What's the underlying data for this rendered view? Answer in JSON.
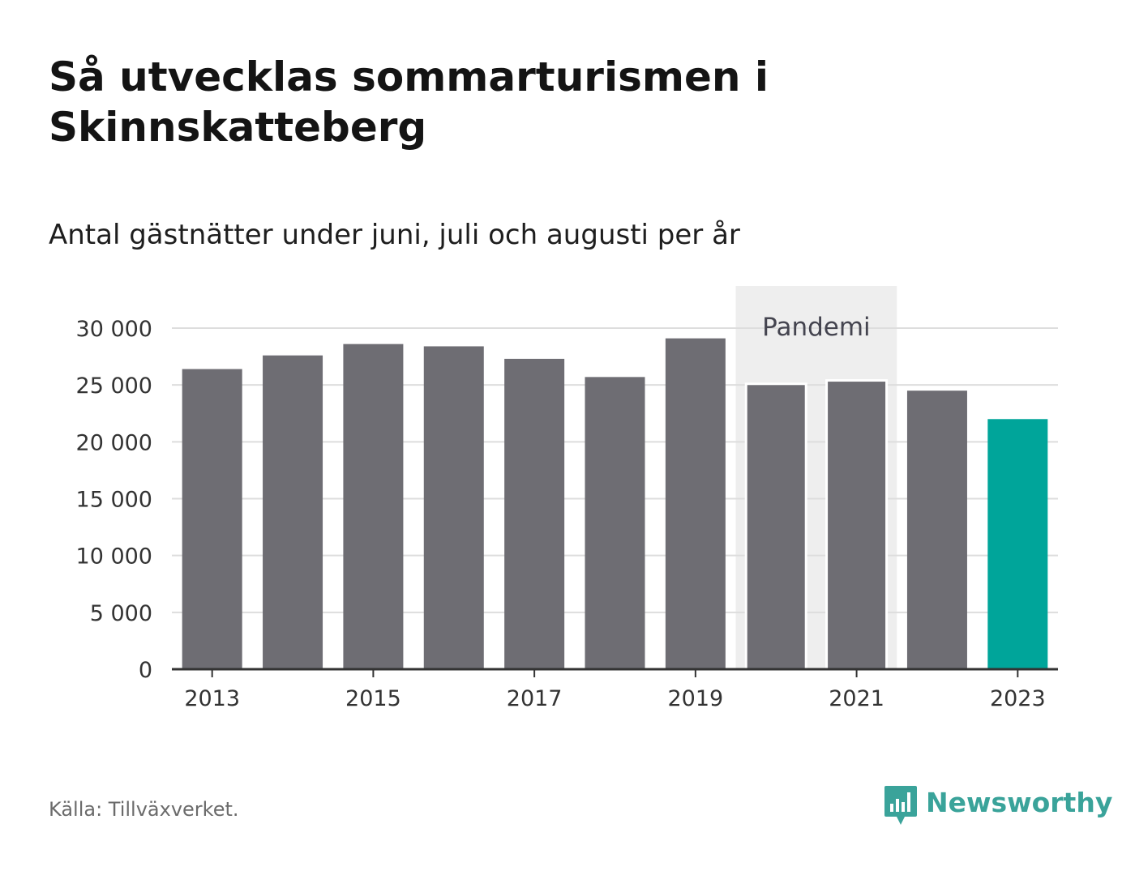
{
  "header": {
    "title": "Så utvecklas sommarturismen i Skinnskatteberg",
    "subtitle": "Antal gästnätter under juni, juli och augusti per år"
  },
  "footer": {
    "source": "Källa: Tillväxverket.",
    "brand": "Newsworthy",
    "brand_icon": "bar-chart-speech-bubble-icon"
  },
  "colors": {
    "bar": "#6e6d73",
    "highlight": "#00a59a",
    "band": "#eeeeee",
    "grid": "#dddddd",
    "axis": "#333333",
    "brand": "#3aa39a"
  },
  "chart_data": {
    "type": "bar",
    "categories": [
      "2013",
      "2014",
      "2015",
      "2016",
      "2017",
      "2018",
      "2019",
      "2020",
      "2021",
      "2022",
      "2023"
    ],
    "values": [
      26400,
      27600,
      28600,
      28400,
      27300,
      25700,
      29100,
      25100,
      25400,
      24500,
      22000
    ],
    "highlight_category": "2023",
    "x_tick_labels": [
      "2013",
      "2015",
      "2017",
      "2019",
      "2021",
      "2023"
    ],
    "y_ticks": [
      0,
      5000,
      10000,
      15000,
      20000,
      25000,
      30000
    ],
    "y_tick_labels": [
      "0",
      "5 000",
      "10 000",
      "15 000",
      "20 000",
      "25 000",
      "30 000"
    ],
    "ylim": [
      0,
      30000
    ],
    "grid": true,
    "annotation": {
      "label": "Pandemi",
      "from_category": "2020",
      "to_category": "2021"
    },
    "title": "Så utvecklas sommarturismen i Skinnskatteberg",
    "subtitle": "Antal gästnätter under juni, juli och augusti per år",
    "xlabel": "",
    "ylabel": ""
  }
}
